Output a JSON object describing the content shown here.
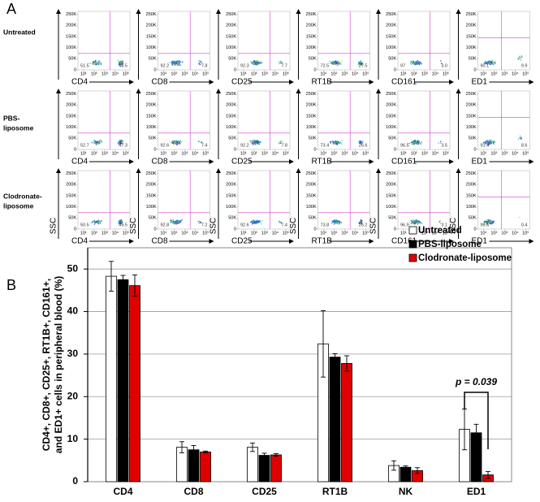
{
  "panel_a": {
    "label": "A",
    "row_labels": [
      [
        "Untreated"
      ],
      [
        "PBS-",
        "liposome"
      ],
      [
        "Clodronate-",
        "liposome"
      ]
    ],
    "markers": [
      "CD4",
      "CD8",
      "CD25",
      "RT1B",
      "CD161",
      "ED1"
    ],
    "y_axis_label": "SSC",
    "yticks": [
      {
        "value": 0,
        "label": "0"
      },
      {
        "value": 50000,
        "label": "50K"
      },
      {
        "value": 100000,
        "label": "100K"
      },
      {
        "value": 150000,
        "label": "150K"
      },
      {
        "value": 200000,
        "label": "200K"
      },
      {
        "value": 250000,
        "label": "250K"
      }
    ],
    "ylim": [
      0,
      262144
    ],
    "xticks": [
      {
        "value": 10,
        "label": "10¹"
      },
      {
        "value": 100,
        "label": "10²"
      },
      {
        "value": 1000,
        "label": "10³"
      },
      {
        "value": 10000,
        "label": "10⁴"
      },
      {
        "value": 100000,
        "label": "10⁵"
      }
    ],
    "xlim": [
      3,
      250000
    ],
    "log_x": true,
    "quadrants": [
      [
        [
          51.5,
          48.5
        ],
        [
          92.2,
          7.8
        ],
        [
          92.3,
          7.7
        ],
        [
          72.5,
          27.5
        ],
        [
          97,
          3.0
        ],
        [
          90.1,
          9.9
        ]
      ],
      [
        [
          52.7,
          47.3
        ],
        [
          92.6,
          7.4
        ],
        [
          92.2,
          7.8
        ],
        [
          73.4,
          26.6
        ],
        [
          96.5,
          3.5
        ],
        [
          91.4,
          8.6
        ]
      ],
      [
        [
          50.5,
          49.5
        ],
        [
          92.8,
          7.2
        ],
        [
          92.6,
          7.4
        ],
        [
          73.8,
          26.2
        ],
        [
          96.9,
          3.1
        ],
        [
          99.6,
          0.4
        ]
      ]
    ],
    "quadrant_labels": [
      [
        [
          "51.5",
          "48.5"
        ],
        [
          "92.2",
          "7.8"
        ],
        [
          "92.3",
          "7.7"
        ],
        [
          "72.5",
          "27.5"
        ],
        [
          "97",
          "3.0"
        ],
        [
          "90.1",
          "9.9"
        ]
      ],
      [
        [
          "52.7",
          "47.3"
        ],
        [
          "92.6",
          "7.4"
        ],
        [
          "92.2",
          "7.8"
        ],
        [
          "73.4",
          "26.6"
        ],
        [
          "96.5",
          "3.5"
        ],
        [
          "91.4",
          "8.6"
        ]
      ],
      [
        [
          "50.5",
          "49.5"
        ],
        [
          "92.8",
          "7.2"
        ],
        [
          "92.6",
          "7.4"
        ],
        [
          "73.8",
          "26.2"
        ],
        [
          "96.9",
          "3.1"
        ],
        [
          "99.6",
          "0.4"
        ]
      ]
    ]
  },
  "chart_data": {
    "type": "bar",
    "panel_label": "B",
    "y_label": [
      "CD4+, CD8+, CD25+, RT1B+, CD161+,",
      "and ED1+ cells in peripheral blood (%)"
    ],
    "categories": [
      "CD4",
      "CD8",
      "CD25",
      "RT1B",
      "NK",
      "ED1"
    ],
    "series": [
      {
        "name": "Untreated",
        "color": "#ffffff",
        "values": [
          48.3,
          8.1,
          8.1,
          32.4,
          3.8,
          12.3
        ],
        "errors": [
          3.5,
          1.3,
          1.0,
          7.8,
          1.1,
          4.8
        ]
      },
      {
        "name": "PBS-liposome",
        "color": "#000000",
        "values": [
          47.5,
          7.5,
          6.2,
          29.3,
          3.4,
          11.5
        ],
        "errors": [
          1.0,
          1.0,
          0.5,
          0.8,
          0.3,
          2.0
        ]
      },
      {
        "name": "Clodronate-liposome",
        "color": "#e00000",
        "values": [
          46.1,
          7.0,
          6.3,
          27.8,
          2.6,
          1.6
        ],
        "errors": [
          2.5,
          0.2,
          0.3,
          1.8,
          0.7,
          0.8
        ]
      }
    ],
    "ylim": [
      0,
      55
    ],
    "yticks": [
      0,
      10,
      20,
      30,
      40,
      50
    ],
    "grid": true,
    "legend": "top-right",
    "annotation": "p = 0.039"
  }
}
